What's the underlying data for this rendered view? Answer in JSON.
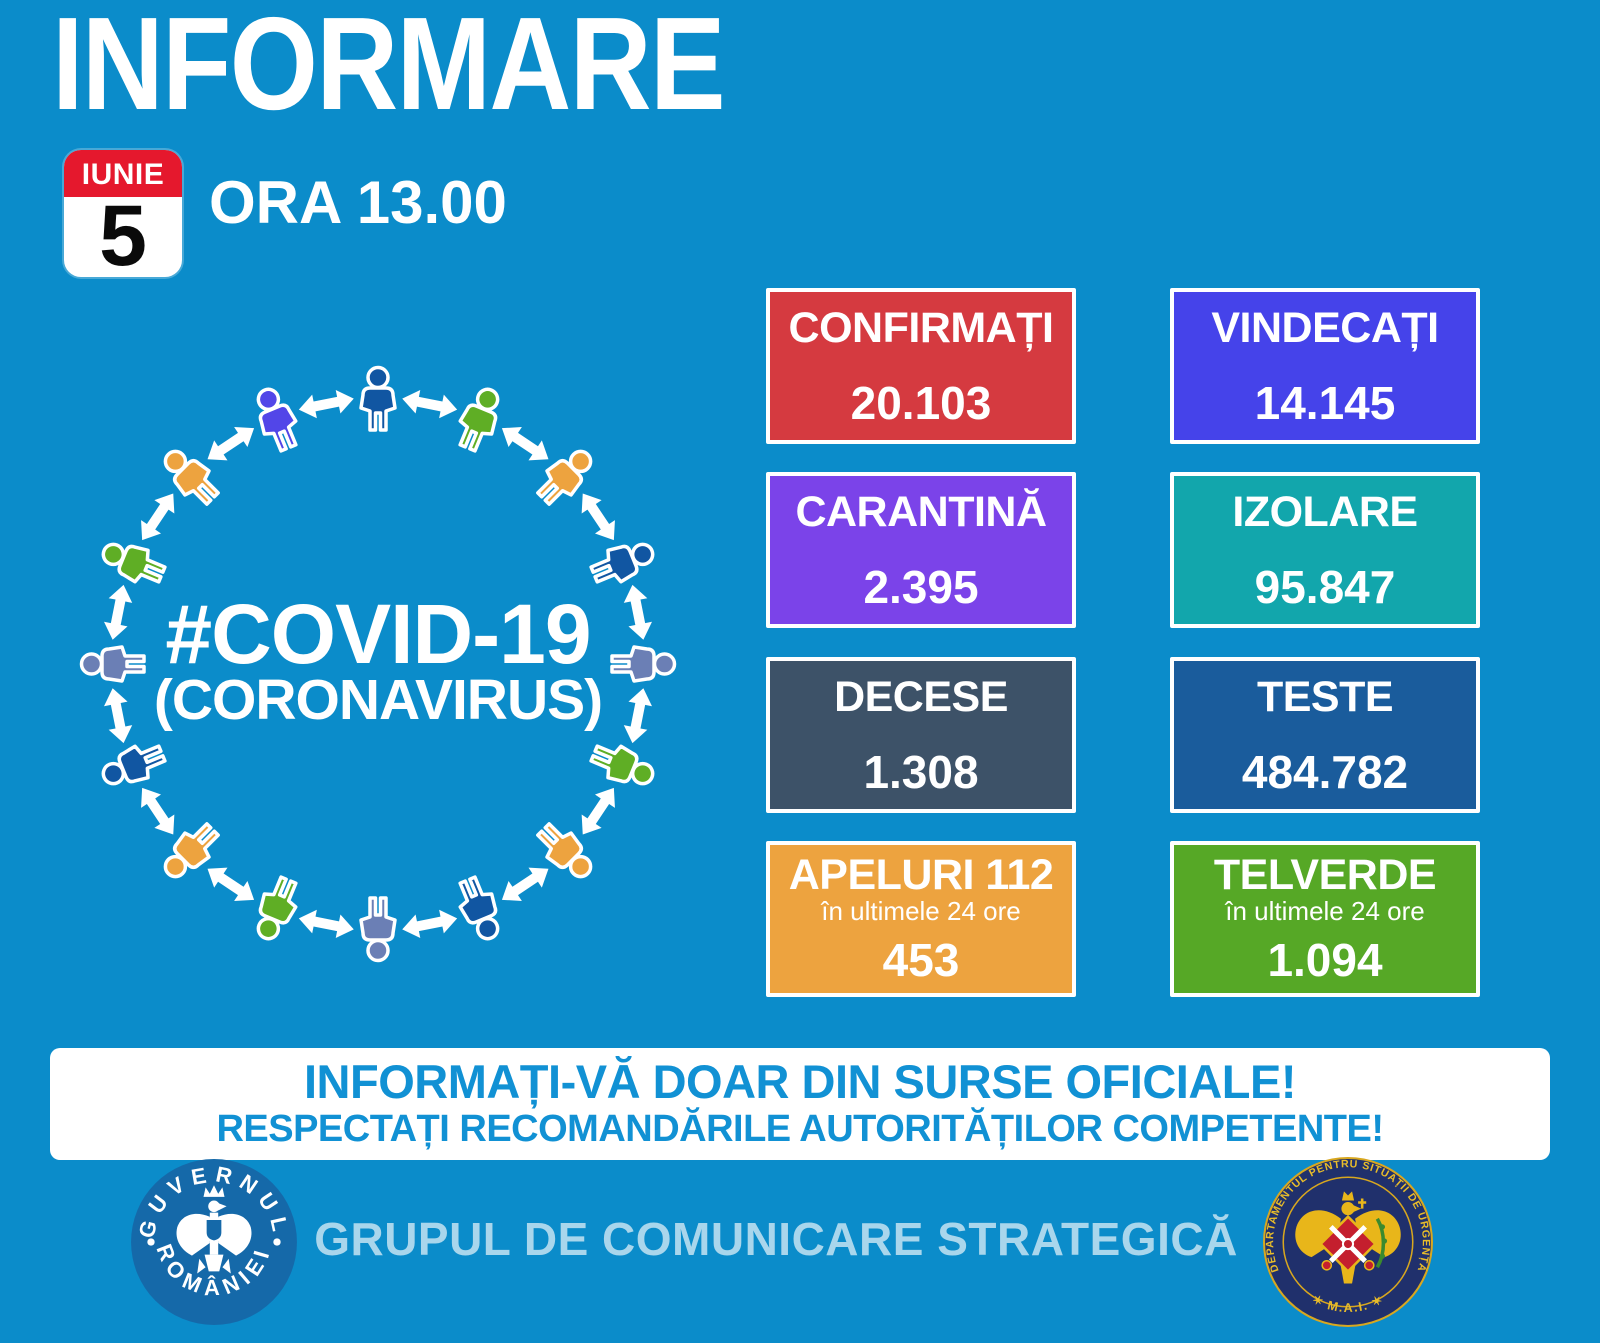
{
  "title": "INFORMARE",
  "date_badge": {
    "month": "IUNIE",
    "day": "5"
  },
  "time_label": "ORA 13.00",
  "diagram": {
    "hashtag": "#COVID-19",
    "subtitle": "(CORONAVIRUS)",
    "people": [
      "navy",
      "green",
      "orange",
      "navy",
      "slate",
      "green",
      "orange",
      "navy",
      "slate",
      "green",
      "orange",
      "navy",
      "slate",
      "green",
      "orange",
      "indigo"
    ],
    "colors": {
      "navy": "#1156a2",
      "green": "#5fae25",
      "orange": "#eda33f",
      "slate": "#6b7fb5",
      "indigo": "#5246e8"
    }
  },
  "stats": [
    {
      "label": "CONFIRMAȚI",
      "value": "20.103",
      "color": "#d53a40"
    },
    {
      "label": "VINDECAȚI",
      "value": "14.145",
      "color": "#4543ea"
    },
    {
      "label": "CARANTINĂ",
      "value": "2.395",
      "color": "#7b43e9"
    },
    {
      "label": "IZOLARE",
      "value": "95.847",
      "color": "#12a6ac"
    },
    {
      "label": "DECESE",
      "value": "1.308",
      "color": "#3d5268"
    },
    {
      "label": "TESTE",
      "value": "484.782",
      "color": "#1a5c9c"
    },
    {
      "label": "APELURI 112",
      "sublabel": "în ultimele 24 ore",
      "value": "453",
      "color": "#eda33f"
    },
    {
      "label": "TELVERDE",
      "sublabel": "în ultimele 24 ore",
      "value": "1.094",
      "color": "#56a826"
    }
  ],
  "banner": {
    "line1": "INFORMAȚI-VĂ DOAR DIN SURSE OFICIALE!",
    "line2": "RESPECTAȚI RECOMANDĂRILE AUTORITĂȚILOR COMPETENTE!"
  },
  "footer": {
    "text": "GRUPUL DE COMUNICARE STRATEGICĂ",
    "gov_seal": {
      "top": "GUVERNUL",
      "bottom": "ROMÂNIEI"
    },
    "dsu_seal": {
      "ring": "DEPARTAMENTUL PENTRU SITUAȚII DE URGENȚĂ",
      "bottom": "✶  M.A.I.  ✶"
    }
  },
  "colors": {
    "background": "#0b8cca",
    "banner_text": "#1191d4",
    "footer_text": "#a9d6ec",
    "calendar_red": "#e5182d",
    "gov_seal_blue": "#1569a9",
    "dsu_navy": "#20306c",
    "dsu_gold": "#e8b61a"
  }
}
